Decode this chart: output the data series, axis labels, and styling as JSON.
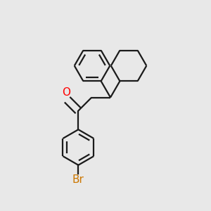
{
  "bg_color": "#e8e8e8",
  "bond_color": "#1a1a1a",
  "O_color": "#ff0000",
  "Br_color": "#cc7700",
  "lw": 1.6,
  "dbo_ring": 0.018,
  "dbo_co": 0.018,
  "font_size_atom": 11,
  "xlim": [
    0.0,
    1.0
  ],
  "ylim": [
    0.0,
    1.0
  ]
}
